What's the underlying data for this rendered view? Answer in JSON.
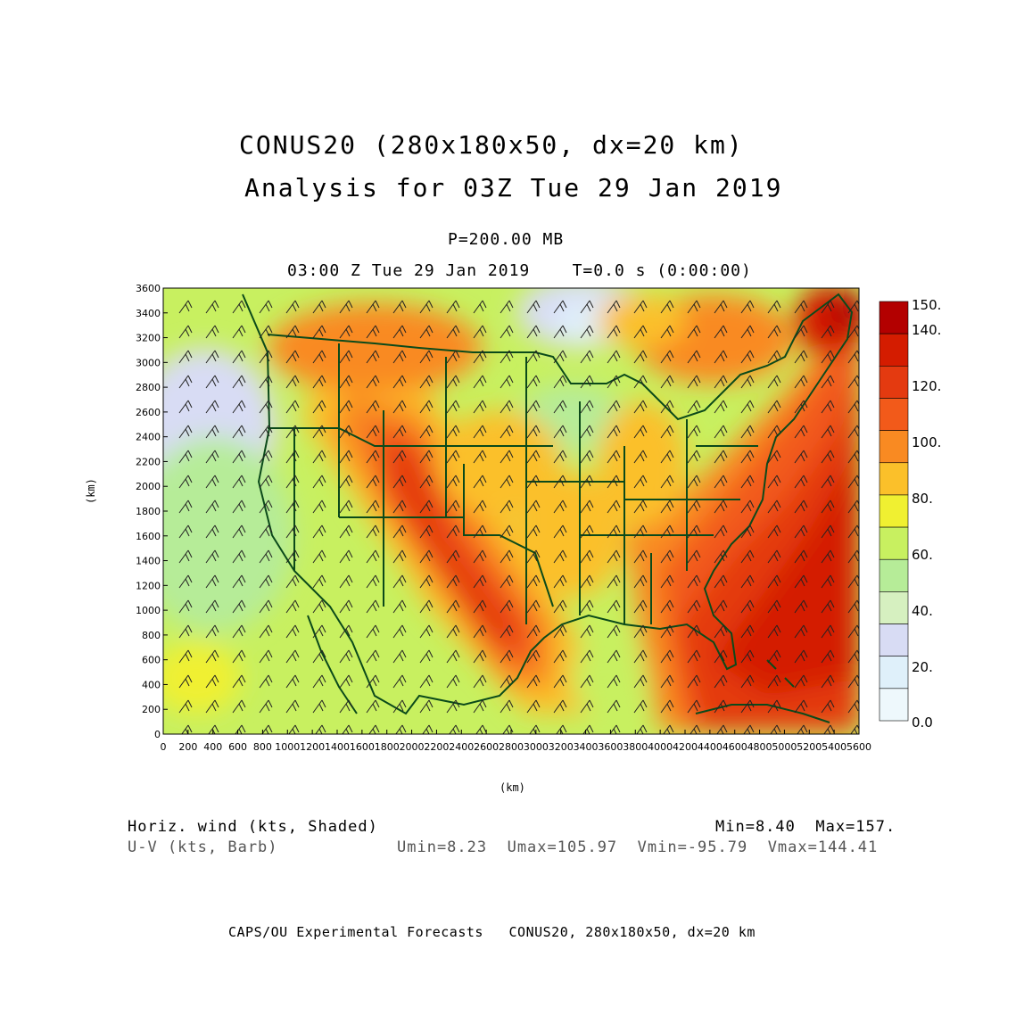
{
  "title_line1": "CONUS20 (280x180x50, dx=20 km)",
  "title_line2": "Analysis for 03Z Tue 29 Jan 2019",
  "level": "P=200.00 MB",
  "valid_time": "03:00 Z Tue 29 Jan 2019    T=0.0 s (0:00:00)",
  "axes": {
    "x_unit": "(km)",
    "y_unit": "(km)",
    "x_ticks": [
      "0",
      "200",
      "400",
      "600",
      "800",
      "1000",
      "1200",
      "1400",
      "1600",
      "1800",
      "2000",
      "2200",
      "2400",
      "2600",
      "2800",
      "3000",
      "3200",
      "3400",
      "3600",
      "3800",
      "4000",
      "4200",
      "4400",
      "4600",
      "4800",
      "5000",
      "5200",
      "5400",
      "5600"
    ],
    "y_ticks": [
      "0",
      "200",
      "400",
      "600",
      "800",
      "1000",
      "1200",
      "1400",
      "1600",
      "1800",
      "2000",
      "2200",
      "2400",
      "2600",
      "2800",
      "3000",
      "3200",
      "3400",
      "3600"
    ],
    "x_range": [
      0,
      5600
    ],
    "y_range": [
      0,
      3600
    ]
  },
  "colorbar": {
    "labels": [
      "150.",
      "140.",
      "120.",
      "100.",
      "80.",
      "60.",
      "40.",
      "20.",
      "0.0"
    ],
    "colors": [
      "#b30000",
      "#d41c00",
      "#e43a10",
      "#f25a1a",
      "#f98a22",
      "#fbc02a",
      "#f0f031",
      "#c8f060",
      "#b6ec98",
      "#d6f0c0",
      "#d8dcf4",
      "#dff0fa",
      "#eef8fc"
    ]
  },
  "legend": {
    "shaded": "Horiz. wind (kts, Shaded)",
    "barb": "U-V (kts, Barb)",
    "minmax": "Min=8.40  Max=157.",
    "uv_minmax": "Umin=8.23  Umax=105.97  Vmin=-95.79  Vmax=144.41"
  },
  "footer": "CAPS/OU Experimental Forecasts   CONUS20, 280x180x50, dx=20 km",
  "colors": {
    "map_boundary": "#0b4a1a",
    "jet_core": "#d41c00"
  }
}
